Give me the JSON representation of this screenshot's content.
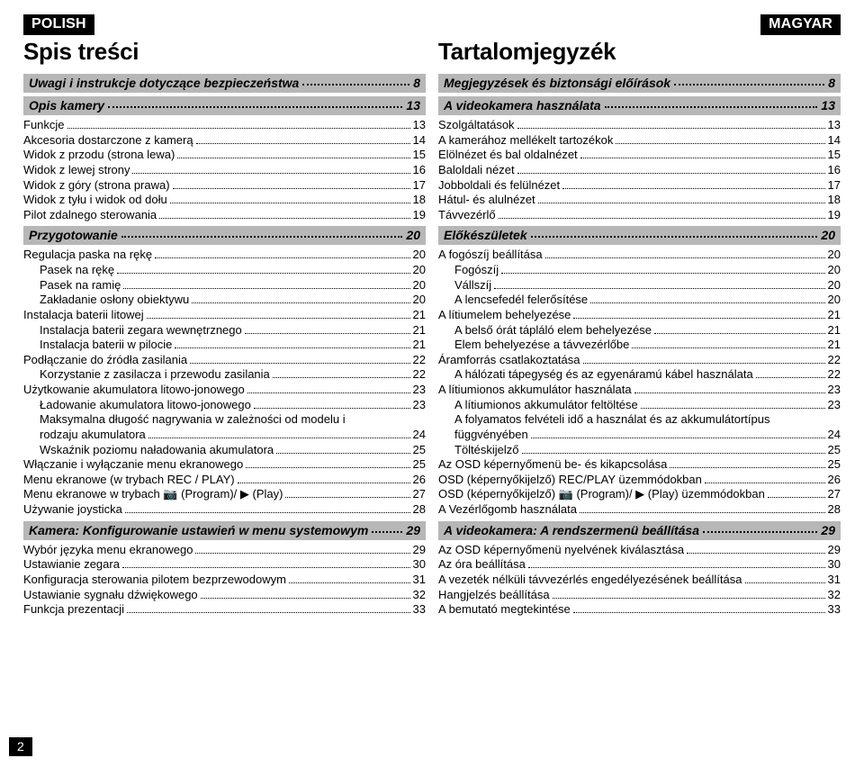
{
  "page_number": "2",
  "left": {
    "lang_badge": "POLISH",
    "title": "Spis treści",
    "sections": [
      {
        "type": "bar",
        "label": "Uwagi i instrukcje dotyczące bezpieczeństwa",
        "page": "8"
      },
      {
        "type": "bar",
        "label": "Opis kamery",
        "page": "13"
      },
      {
        "type": "item",
        "indent": 0,
        "label": "Funkcje",
        "page": "13"
      },
      {
        "type": "item",
        "indent": 0,
        "label": "Akcesoria dostarczone z kamerą",
        "page": "14"
      },
      {
        "type": "item",
        "indent": 0,
        "label": "Widok z przodu (strona lewa)",
        "page": "15"
      },
      {
        "type": "item",
        "indent": 0,
        "label": "Widok z lewej strony",
        "page": "16"
      },
      {
        "type": "item",
        "indent": 0,
        "label": "Widok z góry (strona prawa)",
        "page": "17"
      },
      {
        "type": "item",
        "indent": 0,
        "label": "Widok z tyłu i widok od dołu",
        "page": "18"
      },
      {
        "type": "item",
        "indent": 0,
        "label": "Pilot zdalnego sterowania",
        "page": "19"
      },
      {
        "type": "bar",
        "label": "Przygotowanie",
        "page": "20"
      },
      {
        "type": "item",
        "indent": 0,
        "label": "Regulacja paska na rękę",
        "page": "20"
      },
      {
        "type": "item",
        "indent": 1,
        "label": "Pasek na rękę",
        "page": "20"
      },
      {
        "type": "item",
        "indent": 1,
        "label": "Pasek na ramię",
        "page": "20"
      },
      {
        "type": "item",
        "indent": 1,
        "label": "Zakładanie osłony obiektywu",
        "page": "20"
      },
      {
        "type": "item",
        "indent": 0,
        "label": "Instalacja baterii litowej",
        "page": "21"
      },
      {
        "type": "item",
        "indent": 1,
        "label": "Instalacja baterii zegara wewnętrznego",
        "page": "21"
      },
      {
        "type": "item",
        "indent": 1,
        "label": "Instalacja baterii w pilocie",
        "page": "21"
      },
      {
        "type": "item",
        "indent": 0,
        "label": "Podłączanie do źródła zasilania",
        "page": "22"
      },
      {
        "type": "item",
        "indent": 1,
        "label": "Korzystanie z zasilacza i przewodu zasilania",
        "page": "22"
      },
      {
        "type": "item",
        "indent": 0,
        "label": "Użytkowanie akumulatora litowo-jonowego",
        "page": "23"
      },
      {
        "type": "item",
        "indent": 1,
        "label": "Ładowanie akumulatora litowo-jonowego",
        "page": "23"
      },
      {
        "type": "multi",
        "indent": 1,
        "line1": "Maksymalna długość nagrywania w zależności od modelu i",
        "line2": "rodzaju akumulatora",
        "page": "24"
      },
      {
        "type": "item",
        "indent": 1,
        "label": "Wskaźnik poziomu naładowania akumulatora",
        "page": "25"
      },
      {
        "type": "item",
        "indent": 0,
        "label": "Włączanie i wyłączanie menu ekranowego",
        "page": "25"
      },
      {
        "type": "item",
        "indent": 0,
        "label": "Menu ekranowe (w trybach REC / PLAY)",
        "page": "26"
      },
      {
        "type": "item",
        "indent": 0,
        "label": "Menu ekranowe w trybach 📷 (Program)/ ▶ (Play)",
        "page": "27"
      },
      {
        "type": "item",
        "indent": 0,
        "label": "Używanie joysticka",
        "page": "28"
      },
      {
        "type": "bar",
        "label": "Kamera: Konfigurowanie ustawień w menu systemowym",
        "page": "29"
      },
      {
        "type": "item",
        "indent": 0,
        "label": "Wybór języka menu ekranowego",
        "page": "29"
      },
      {
        "type": "item",
        "indent": 0,
        "label": "Ustawianie zegara",
        "page": "30"
      },
      {
        "type": "item",
        "indent": 0,
        "label": "Konfiguracja sterowania pilotem bezprzewodowym",
        "page": "31"
      },
      {
        "type": "item",
        "indent": 0,
        "label": "Ustawianie sygnału dźwiękowego",
        "page": "32"
      },
      {
        "type": "item",
        "indent": 0,
        "label": "Funkcja prezentacji",
        "page": "33"
      }
    ]
  },
  "right": {
    "lang_badge": "MAGYAR",
    "title": "Tartalomjegyzék",
    "sections": [
      {
        "type": "bar",
        "label": "Megjegyzések és biztonsági előírások",
        "page": "8"
      },
      {
        "type": "bar",
        "label": "A videokamera használata",
        "page": "13"
      },
      {
        "type": "item",
        "indent": 0,
        "label": "Szolgáltatások",
        "page": "13"
      },
      {
        "type": "item",
        "indent": 0,
        "label": "A kamerához mellékelt tartozékok",
        "page": "14"
      },
      {
        "type": "item",
        "indent": 0,
        "label": "Elölnézet és bal oldalnézet",
        "page": "15"
      },
      {
        "type": "item",
        "indent": 0,
        "label": "Baloldali nézet",
        "page": "16"
      },
      {
        "type": "item",
        "indent": 0,
        "label": "Jobboldali és felülnézet",
        "page": "17"
      },
      {
        "type": "item",
        "indent": 0,
        "label": "Hátul- és alulnézet",
        "page": "18"
      },
      {
        "type": "item",
        "indent": 0,
        "label": "Távvezérlő",
        "page": "19"
      },
      {
        "type": "bar",
        "label": "Előkészületek",
        "page": "20"
      },
      {
        "type": "item",
        "indent": 0,
        "label": "A fogószíj beállítása",
        "page": "20"
      },
      {
        "type": "item",
        "indent": 1,
        "label": "Fogószíj",
        "page": "20"
      },
      {
        "type": "item",
        "indent": 1,
        "label": "Vállszíj",
        "page": "20"
      },
      {
        "type": "item",
        "indent": 1,
        "label": "A lencsefedél felerősítése",
        "page": "20"
      },
      {
        "type": "item",
        "indent": 0,
        "label": "A lítiumelem behelyezése",
        "page": "21"
      },
      {
        "type": "item",
        "indent": 1,
        "label": "A belső órát tápláló elem behelyezése",
        "page": "21"
      },
      {
        "type": "item",
        "indent": 1,
        "label": "Elem behelyezése a távvezérlőbe",
        "page": "21"
      },
      {
        "type": "item",
        "indent": 0,
        "label": "Áramforrás csatlakoztatása",
        "page": "22"
      },
      {
        "type": "item",
        "indent": 1,
        "label": "A hálózati tápegység és az egyenáramú kábel használata",
        "page": "22"
      },
      {
        "type": "item",
        "indent": 0,
        "label": "A lítiumionos akkumulátor használata",
        "page": "23"
      },
      {
        "type": "item",
        "indent": 1,
        "label": "A lítiumionos akkumulátor feltöltése",
        "page": "23"
      },
      {
        "type": "multi",
        "indent": 1,
        "line1": "A folyamatos felvételi idő a használat és az akkumulátortípus",
        "line2": "függvényében",
        "page": "24"
      },
      {
        "type": "item",
        "indent": 1,
        "label": "Töltéskijelző",
        "page": "25"
      },
      {
        "type": "item",
        "indent": 0,
        "label": "Az OSD képernyőmenü be- és kikapcsolása",
        "page": "25"
      },
      {
        "type": "item",
        "indent": 0,
        "label": "OSD (képernyőkijelző) REC/PLAY üzemmódokban",
        "page": "26"
      },
      {
        "type": "item",
        "indent": 0,
        "label": "OSD (képernyőkijelző) 📷 (Program)/ ▶ (Play) üzemmódokban",
        "page": "27"
      },
      {
        "type": "item",
        "indent": 0,
        "label": "A Vezérlőgomb használata",
        "page": "28"
      },
      {
        "type": "bar",
        "label": "A videokamera: A rendszermenü beállítása",
        "page": "29"
      },
      {
        "type": "item",
        "indent": 0,
        "label": "Az OSD képernyőmenü nyelvének kiválasztása",
        "page": "29"
      },
      {
        "type": "item",
        "indent": 0,
        "label": "Az óra beállítása",
        "page": "30"
      },
      {
        "type": "item",
        "indent": 0,
        "label": "A vezeték nélküli távvezérlés engedélyezésének beállítása",
        "page": "31"
      },
      {
        "type": "item",
        "indent": 0,
        "label": "Hangjelzés beállítása",
        "page": "32"
      },
      {
        "type": "item",
        "indent": 0,
        "label": "A bemutató megtekintése",
        "page": "33"
      }
    ]
  },
  "colors": {
    "badge_bg": "#000000",
    "badge_fg": "#ffffff",
    "bar_bg": "#b7b7b7",
    "text": "#000000",
    "page_bg": "#ffffff"
  }
}
